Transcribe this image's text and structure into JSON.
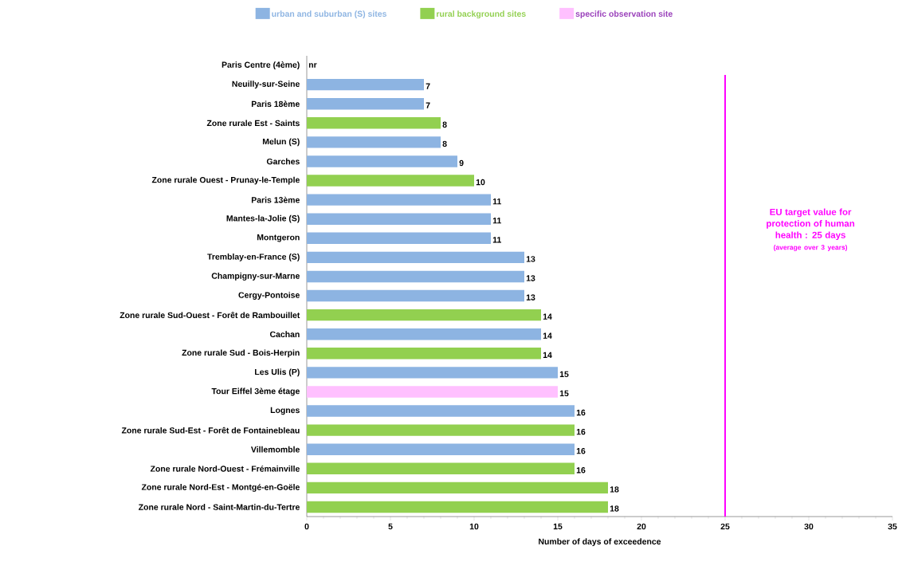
{
  "chart_data": {
    "type": "bar",
    "orientation": "horizontal",
    "categories": [
      "Paris Centre (4ème)",
      "Neuilly-sur-Seine",
      "Paris 18ème",
      "Zone rurale Est - Saints",
      "Melun (S)",
      "Garches",
      "Zone rurale Ouest - Prunay-le-Temple",
      "Paris 13ème",
      "Mantes-la-Jolie (S)",
      "Montgeron",
      "Tremblay-en-France (S)",
      "Champigny-sur-Marne",
      "Cergy-Pontoise",
      "Zone rurale Sud-Ouest - Forêt de Rambouillet",
      "Cachan",
      "Zone rurale Sud - Bois-Herpin",
      "Les Ulis (P)",
      "Tour Eiffel 3ème étage",
      "Lognes",
      "Zone rurale Sud-Est - Forêt de Fontainebleau",
      "Villemomble",
      "Zone rurale Nord-Ouest - Frémainville",
      "Zone rurale Nord-Est - Montgé-en-Goële",
      "Zone rurale Nord - Saint-Martin-du-Tertre"
    ],
    "series": [
      {
        "name": "urban and suburban (S) sites",
        "color": "#8db4e2",
        "values": [
          null,
          7,
          7,
          null,
          8,
          9,
          null,
          11,
          11,
          11,
          13,
          13,
          13,
          null,
          14,
          null,
          15,
          null,
          16,
          null,
          16,
          null,
          null,
          null
        ]
      },
      {
        "name": "rural background sites",
        "color": "#92d050",
        "values": [
          null,
          null,
          null,
          8,
          null,
          null,
          10,
          null,
          null,
          null,
          null,
          null,
          null,
          14,
          null,
          14,
          null,
          null,
          null,
          16,
          null,
          16,
          18,
          18
        ]
      },
      {
        "name": "specific observation site",
        "color": "#ffc0ff",
        "values": [
          null,
          null,
          null,
          null,
          null,
          null,
          null,
          null,
          null,
          null,
          null,
          null,
          null,
          null,
          null,
          null,
          null,
          15,
          null,
          null,
          null,
          null,
          null,
          null
        ]
      }
    ],
    "xlabel": "Number of days of exceedence",
    "xlim": [
      0,
      35
    ],
    "xticks": [
      0,
      5,
      10,
      15,
      20,
      25,
      30,
      35
    ],
    "data_labels": true,
    "legend": "top",
    "ref_lines": [
      {
        "axis": "x",
        "value": 25,
        "label": "EU target value for protection of human health : 25 days",
        "color": "#ff00ff"
      }
    ],
    "annotations": [
      "nr",
      "(average over 3 years)"
    ]
  }
}
